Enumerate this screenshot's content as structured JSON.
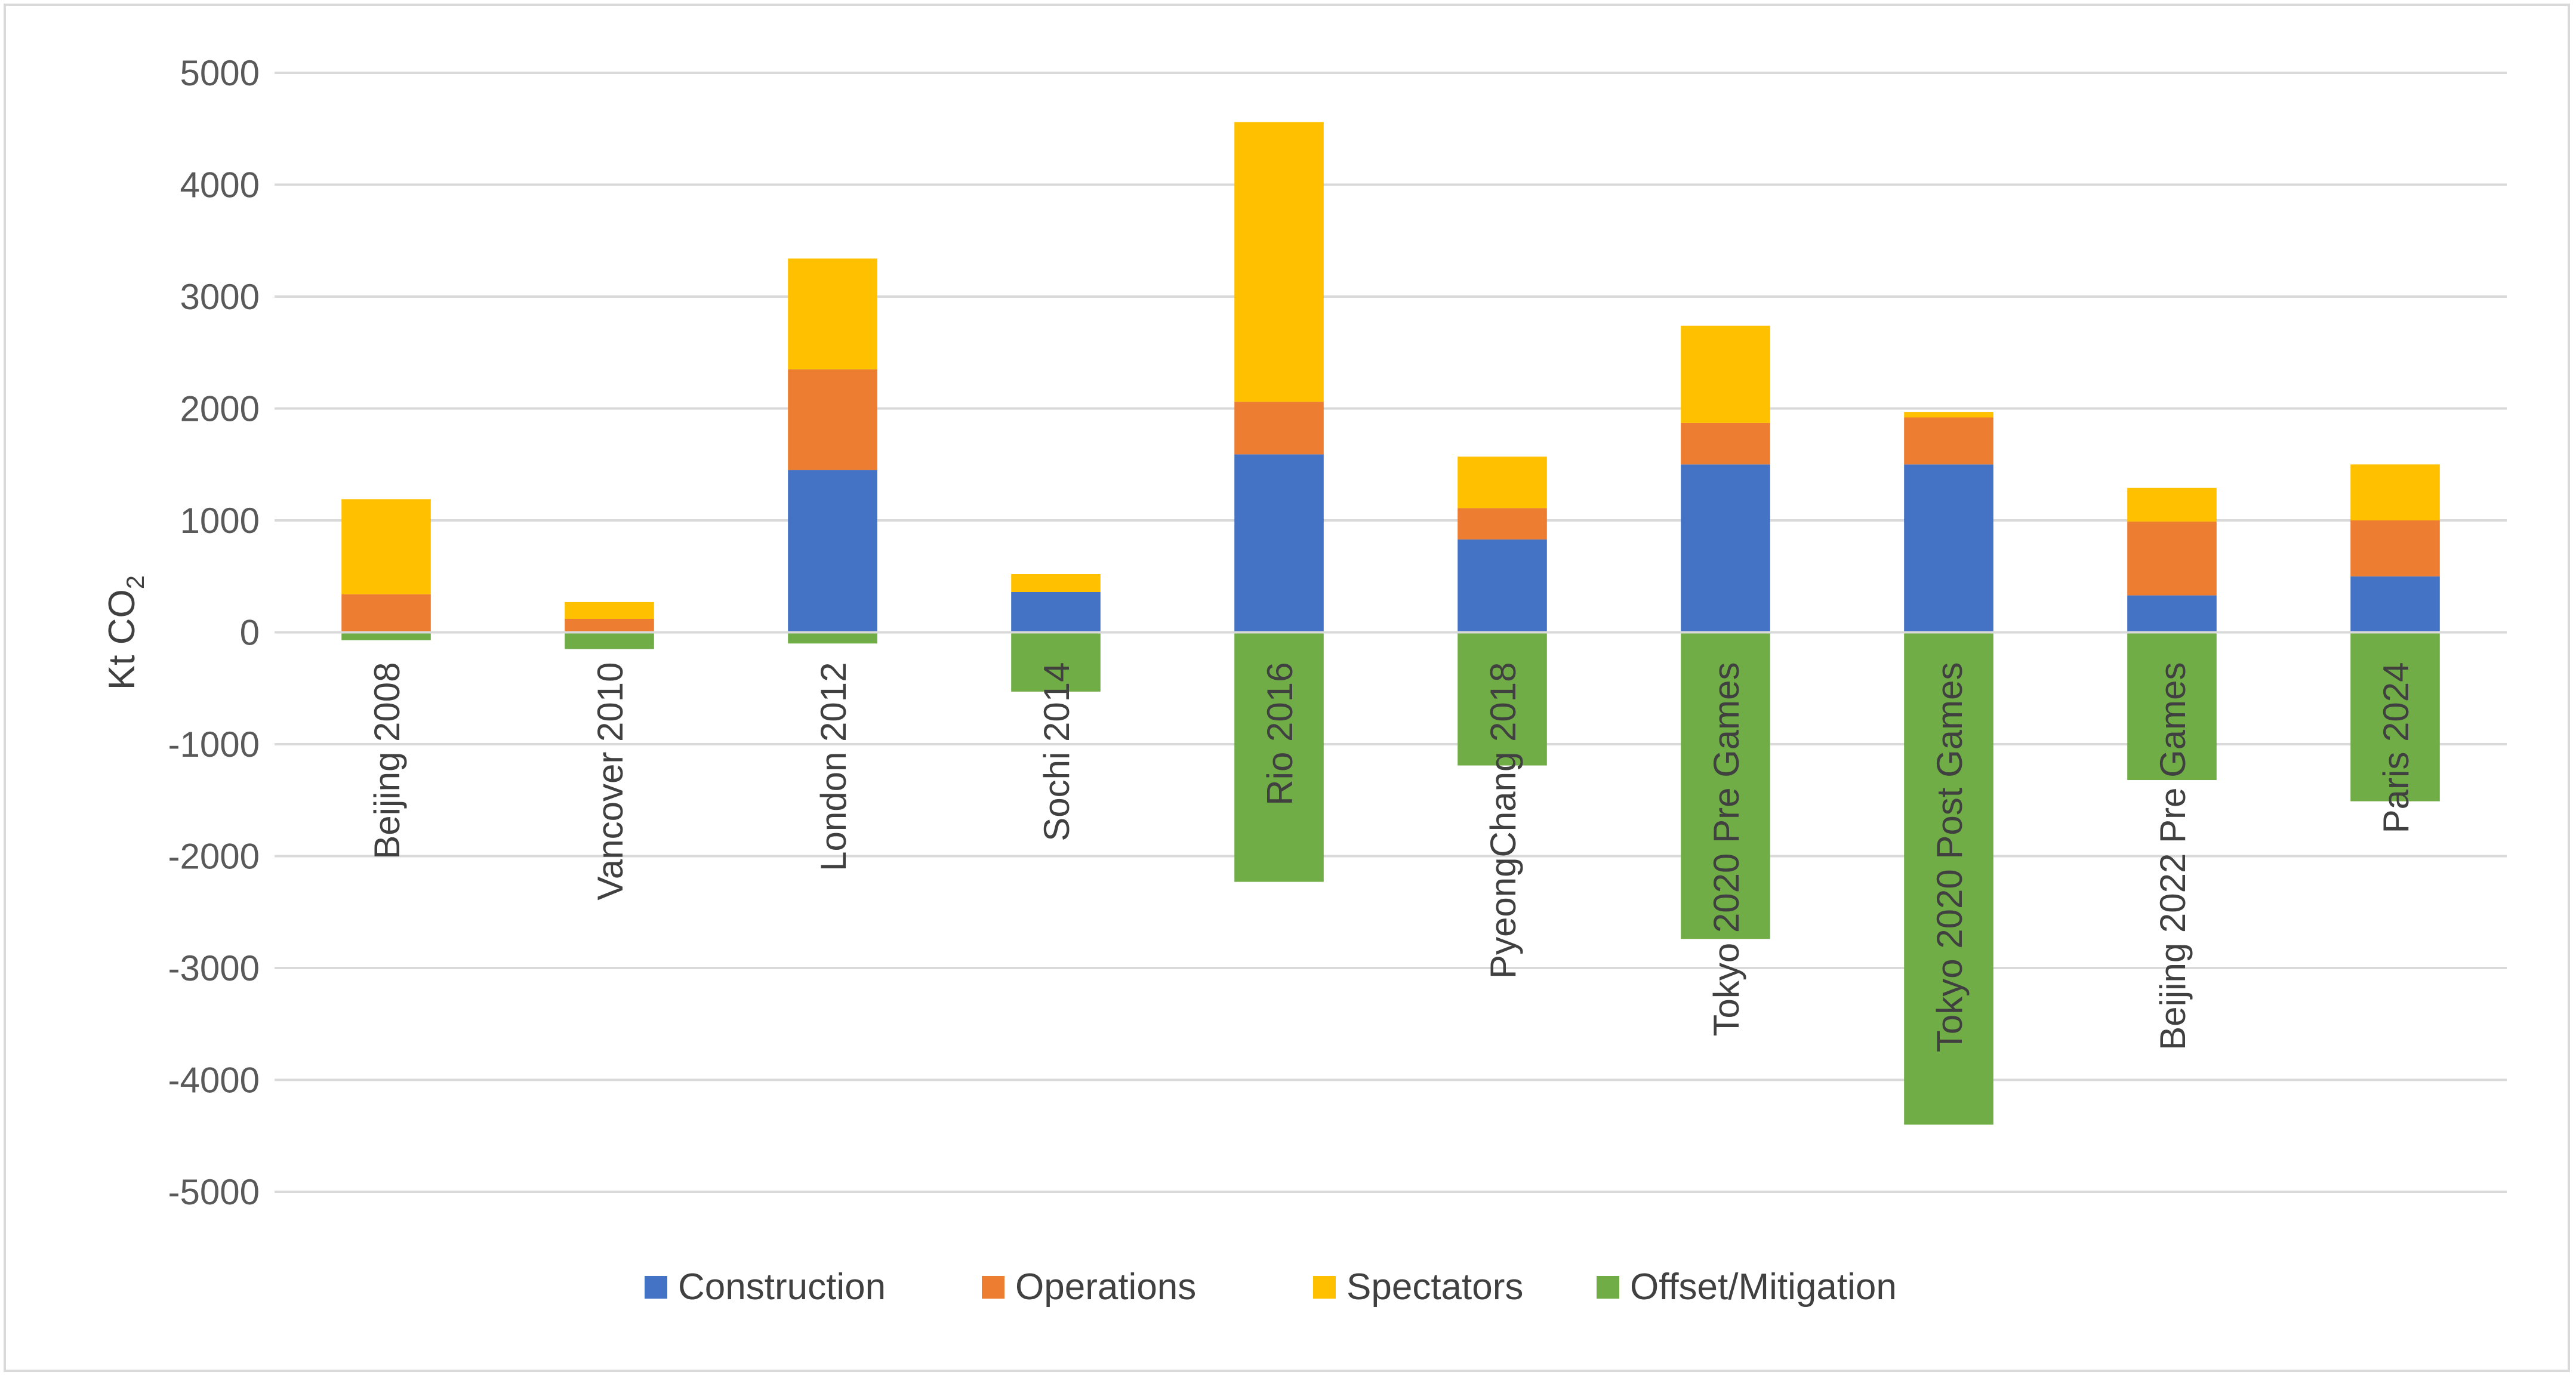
{
  "chart_data": {
    "type": "bar",
    "stacked": true,
    "title": "",
    "xlabel": "",
    "ylabel": "Kt CO",
    "ylabel_subscript": "2",
    "ylim": [
      -5000,
      5000
    ],
    "yticks": [
      5000,
      4000,
      3000,
      2000,
      1000,
      0,
      -1000,
      -2000,
      -3000,
      -4000,
      -5000
    ],
    "grid": true,
    "legend_position": "bottom",
    "categories": [
      "Beijing 2008",
      "Vancover 2010",
      "London 2012",
      "Sochi 2014",
      "Rio 2016",
      "PyeongChang 2018",
      "Tokyo 2020 Pre Games",
      "Tokyo 2020 Post Games",
      "Beijing 2022 Pre Games",
      "Paris 2024"
    ],
    "series": [
      {
        "name": "Construction",
        "color": "#4472c4",
        "values": [
          0,
          0,
          1450,
          360,
          1590,
          830,
          1500,
          1500,
          330,
          500
        ]
      },
      {
        "name": "Operations",
        "color": "#ed7d31",
        "values": [
          340,
          120,
          900,
          0,
          470,
          280,
          370,
          420,
          660,
          500
        ]
      },
      {
        "name": "Spectators",
        "color": "#ffc000",
        "values": [
          850,
          150,
          990,
          160,
          2500,
          460,
          870,
          50,
          300,
          500
        ]
      },
      {
        "name": "Offset/Mitigation",
        "color": "#70ad47",
        "values": [
          -70,
          -150,
          -100,
          -530,
          -2230,
          -1190,
          -2740,
          -4400,
          -1320,
          -1510
        ]
      }
    ]
  }
}
